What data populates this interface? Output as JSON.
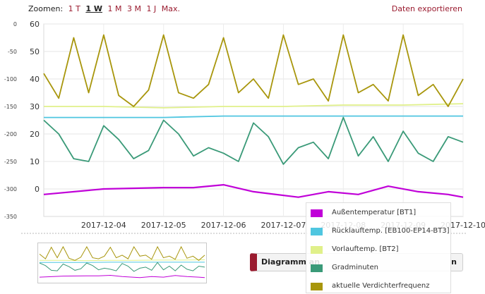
{
  "toolbar": {
    "zoom_label": "Zoomen:",
    "zoom_options": [
      "1 T",
      "1 W",
      "1 M",
      "3 M",
      "1 J",
      "Max."
    ],
    "active_zoom": "1 W",
    "export_label": "Daten exportieren"
  },
  "diagram_button": {
    "label_start": "Diagramm an",
    "label_end": "n"
  },
  "colors": {
    "aussentemp": "#c000d8",
    "ruecklauf": "#4fc6e0",
    "vorlauf": "#e0f08a",
    "gradminuten": "#3a9a78",
    "verdichter": "#a8960c"
  },
  "chart_data": {
    "type": "line",
    "x_start": "2017-12-03",
    "x_end": "2017-12-10",
    "x_ticks": [
      "2017-12-04",
      "2017-12-05",
      "2017-12-06",
      "2017-12-07",
      "2017-12-08",
      "2017-12-09",
      "2017-12-10"
    ],
    "y_left": {
      "ylim": [
        -10,
        60
      ],
      "ticks": [
        0,
        10,
        20,
        30,
        40,
        50,
        60
      ]
    },
    "y_right": {
      "ylim": [
        -350,
        0
      ],
      "ticks": [
        0,
        -50,
        -100,
        -150,
        -200,
        -250,
        -300,
        -350
      ]
    },
    "grid": true,
    "legend_position": "bottom-right",
    "series": [
      {
        "name": "Außentemperatur [BT1]",
        "axis": "left",
        "x": [
          "2017-12-03",
          "2017-12-04",
          "2017-12-05",
          "2017-12-05 12:00",
          "2017-12-06",
          "2017-12-06 12:00",
          "2017-12-07 06:00",
          "2017-12-07 18:00",
          "2017-12-08 06:00",
          "2017-12-08 18:00",
          "2017-12-09 06:00",
          "2017-12-09 18:00",
          "2017-12-10"
        ],
        "y": [
          -2,
          0,
          0.5,
          0.5,
          1.5,
          -1,
          -3,
          -1,
          -2,
          1,
          -1,
          -2,
          -3
        ]
      },
      {
        "name": "Rücklauftemp. [EB100-EP14-BT3]",
        "axis": "left",
        "x": [
          "2017-12-03",
          "2017-12-04",
          "2017-12-05",
          "2017-12-06",
          "2017-12-07",
          "2017-12-08",
          "2017-12-09",
          "2017-12-10"
        ],
        "y": [
          26,
          26,
          26,
          26.5,
          26.5,
          26.5,
          26.5,
          26.5
        ]
      },
      {
        "name": "Vorlauftemp. [BT2]",
        "axis": "left",
        "x": [
          "2017-12-03",
          "2017-12-04",
          "2017-12-05",
          "2017-12-06",
          "2017-12-07",
          "2017-12-08",
          "2017-12-09",
          "2017-12-10"
        ],
        "y": [
          30,
          30,
          29.5,
          30,
          30,
          30.5,
          30.5,
          31
        ]
      },
      {
        "name": "Gradminuten",
        "axis": "right",
        "x": [
          "2017-12-03",
          "2017-12-03 06:00",
          "2017-12-03 12:00",
          "2017-12-03 18:00",
          "2017-12-04",
          "2017-12-04 06:00",
          "2017-12-04 12:00",
          "2017-12-04 18:00",
          "2017-12-05",
          "2017-12-05 06:00",
          "2017-12-05 12:00",
          "2017-12-05 18:00",
          "2017-12-06",
          "2017-12-06 06:00",
          "2017-12-06 12:00",
          "2017-12-06 18:00",
          "2017-12-07",
          "2017-12-07 06:00",
          "2017-12-07 12:00",
          "2017-12-07 18:00",
          "2017-12-08",
          "2017-12-08 06:00",
          "2017-12-08 12:00",
          "2017-12-08 18:00",
          "2017-12-09",
          "2017-12-09 06:00",
          "2017-12-09 12:00",
          "2017-12-09 18:00",
          "2017-12-10"
        ],
        "y": [
          -175,
          -200,
          -245,
          -250,
          -185,
          -210,
          -245,
          -230,
          -175,
          -200,
          -240,
          -225,
          -235,
          -250,
          -180,
          -205,
          -255,
          -225,
          -215,
          -245,
          -170,
          -240,
          -205,
          -250,
          -195,
          -235,
          -250,
          -205,
          -215
        ]
      },
      {
        "name": "aktuelle Verdichterfrequenz",
        "axis": "left",
        "x": [
          "2017-12-03",
          "2017-12-03 06:00",
          "2017-12-03 12:00",
          "2017-12-03 18:00",
          "2017-12-04",
          "2017-12-04 06:00",
          "2017-12-04 12:00",
          "2017-12-04 18:00",
          "2017-12-05",
          "2017-12-05 06:00",
          "2017-12-05 12:00",
          "2017-12-05 18:00",
          "2017-12-06",
          "2017-12-06 06:00",
          "2017-12-06 12:00",
          "2017-12-06 18:00",
          "2017-12-07",
          "2017-12-07 06:00",
          "2017-12-07 12:00",
          "2017-12-07 18:00",
          "2017-12-08",
          "2017-12-08 06:00",
          "2017-12-08 12:00",
          "2017-12-08 18:00",
          "2017-12-09",
          "2017-12-09 06:00",
          "2017-12-09 12:00",
          "2017-12-09 18:00",
          "2017-12-10"
        ],
        "y": [
          42,
          33,
          55,
          35,
          56,
          34,
          30,
          36,
          56,
          35,
          33,
          38,
          55,
          35,
          40,
          33,
          56,
          38,
          40,
          32,
          56,
          35,
          38,
          32,
          56,
          34,
          38,
          30,
          40
        ]
      }
    ]
  }
}
